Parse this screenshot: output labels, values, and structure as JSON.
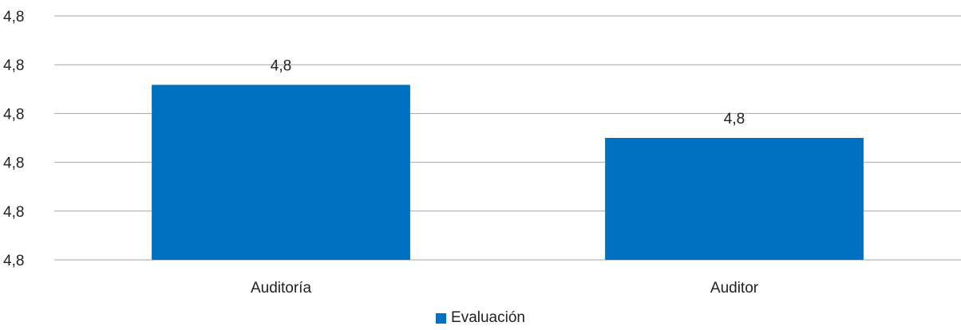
{
  "chart_data": {
    "type": "bar",
    "categories": [
      "Auditoría",
      "Auditor"
    ],
    "series": [
      {
        "name": "Evaluación",
        "values": [
          4.8435,
          4.8
        ],
        "color": "#0070C0"
      }
    ],
    "data_labels": [
      "4,8",
      "4,8"
    ],
    "y_ticks": [
      "4,8",
      "4,8",
      "4,8",
      "4,8",
      "4,8",
      "4,8"
    ],
    "ylim": [
      4.7,
      4.9
    ],
    "grid": true,
    "legend_position": "bottom"
  }
}
